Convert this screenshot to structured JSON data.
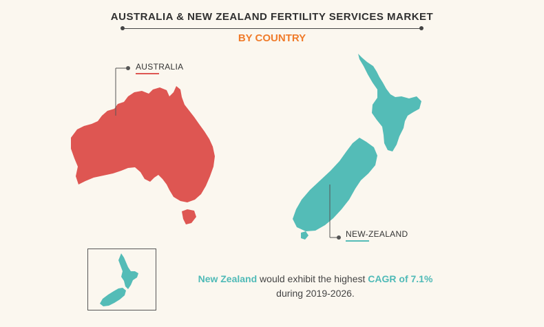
{
  "header": {
    "title": "AUSTRALIA & NEW ZEALAND FERTILITY SERVICES MARKET",
    "subtitle": "BY COUNTRY"
  },
  "regions": {
    "australia": {
      "label": "AUSTRALIA",
      "color": "#de5652"
    },
    "new_zealand": {
      "label": "NEW-ZEALAND",
      "color": "#54bcb7"
    }
  },
  "highlight": {
    "country": "New Zealand",
    "text_mid": " would exhibit the highest ",
    "cagr": "CAGR of 7.1%",
    "period": "during 2019-2026."
  },
  "inset": {
    "region": "New Zealand"
  }
}
